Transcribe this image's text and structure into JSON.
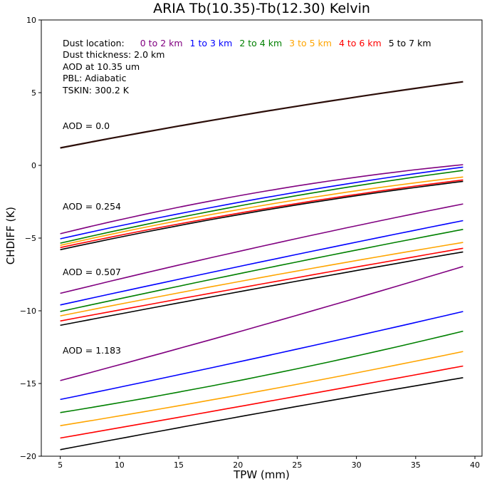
{
  "chart_data": {
    "type": "line",
    "title": "ARIA Tb(10.35)-Tb(12.30) Kelvin",
    "xlabel": "TPW (mm)",
    "ylabel": "CHDIFF (K)",
    "xlim": [
      3.4,
      40.6
    ],
    "ylim": [
      -20,
      10
    ],
    "grid": false,
    "legend_position": "inside top-left (text annotations)",
    "x_ticks": [
      5,
      10,
      15,
      20,
      25,
      30,
      35,
      40
    ],
    "x_tick_labels": [
      "5",
      "10",
      "15",
      "20",
      "25",
      "30",
      "35",
      "40"
    ],
    "y_ticks": [
      10,
      5,
      0,
      -5,
      -10,
      -15,
      -20
    ],
    "y_tick_labels": [
      "10",
      "5",
      "0",
      "−5",
      "−10",
      "−15",
      "−20"
    ],
    "x_sample": [
      5,
      20.7,
      39
    ],
    "groups": [
      {
        "aod": 0.0,
        "label": "AOD = 0.0",
        "series": [
          {
            "location": "all locations (overlapping)",
            "color": "#2b0d08",
            "width": 2.2,
            "y": [
              1.2,
              3.5,
              5.75
            ]
          }
        ]
      },
      {
        "aod": 0.254,
        "label": "AOD = 0.254",
        "series": [
          {
            "location": "0 to 2 km",
            "color": "#800080",
            "y": [
              -4.7,
              -2.0,
              0.05
            ]
          },
          {
            "location": "1 to 3 km",
            "color": "#0000ff",
            "y": [
              -5.05,
              -2.45,
              -0.12
            ]
          },
          {
            "location": "2 to 4 km",
            "color": "#008000",
            "y": [
              -5.35,
              -2.7,
              -0.35
            ]
          },
          {
            "location": "3 to 5 km",
            "color": "#ffa500",
            "y": [
              -5.5,
              -2.95,
              -0.8
            ]
          },
          {
            "location": "4 to 6 km",
            "color": "#ff0000",
            "y": [
              -5.65,
              -3.2,
              -1.0
            ]
          },
          {
            "location": "5 to 7 km",
            "color": "#000000",
            "y": [
              -5.8,
              -3.3,
              -1.1
            ]
          }
        ]
      },
      {
        "aod": 0.507,
        "label": "AOD = 0.507",
        "series": [
          {
            "location": "0 to 2 km",
            "color": "#800080",
            "y": [
              -8.8,
              -5.8,
              -2.65
            ]
          },
          {
            "location": "1 to 3 km",
            "color": "#0000ff",
            "y": [
              -9.6,
              -6.85,
              -3.8
            ]
          },
          {
            "location": "2 to 4 km",
            "color": "#008000",
            "y": [
              -10.05,
              -7.35,
              -4.4
            ]
          },
          {
            "location": "3 to 5 km",
            "color": "#ffa500",
            "y": [
              -10.35,
              -7.9,
              -5.3
            ]
          },
          {
            "location": "4 to 6 km",
            "color": "#ff0000",
            "y": [
              -10.7,
              -8.35,
              -5.7
            ]
          },
          {
            "location": "5 to 7 km",
            "color": "#000000",
            "y": [
              -11.0,
              -8.6,
              -5.95
            ]
          }
        ]
      },
      {
        "aod": 1.183,
        "label": "AOD = 1.183",
        "series": [
          {
            "location": "0 to 2 km",
            "color": "#800080",
            "y": [
              -14.8,
              -11.3,
              -6.95
            ]
          },
          {
            "location": "1 to 3 km",
            "color": "#0000ff",
            "y": [
              -16.1,
              -13.4,
              -10.05
            ]
          },
          {
            "location": "2 to 4 km",
            "color": "#008000",
            "y": [
              -17.0,
              -14.7,
              -11.4
            ]
          },
          {
            "location": "3 to 5 km",
            "color": "#ffa500",
            "y": [
              -17.9,
              -15.7,
              -12.8
            ]
          },
          {
            "location": "4 to 6 km",
            "color": "#ff0000",
            "y": [
              -18.75,
              -16.5,
              -13.8
            ]
          },
          {
            "location": "5 to 7 km",
            "color": "#000000",
            "y": [
              -19.55,
              -17.2,
              -14.6
            ]
          }
        ]
      }
    ]
  },
  "info": {
    "dust_location_label": "Dust location:",
    "locations": [
      {
        "label": "0 to 2 km",
        "color": "#800080"
      },
      {
        "label": "1 to 3 km",
        "color": "#0000ff"
      },
      {
        "label": "2 to 4 km",
        "color": "#008000"
      },
      {
        "label": "3 to 5 km",
        "color": "#ffa500"
      },
      {
        "label": "4 to 6 km",
        "color": "#ff0000"
      },
      {
        "label": "5 to 7 km",
        "color": "#000000"
      }
    ],
    "lines": [
      "Dust thickness: 2.0 km",
      "AOD at 10.35 um",
      "PBL: Adiabatic",
      "TSKIN: 300.2 K"
    ]
  }
}
